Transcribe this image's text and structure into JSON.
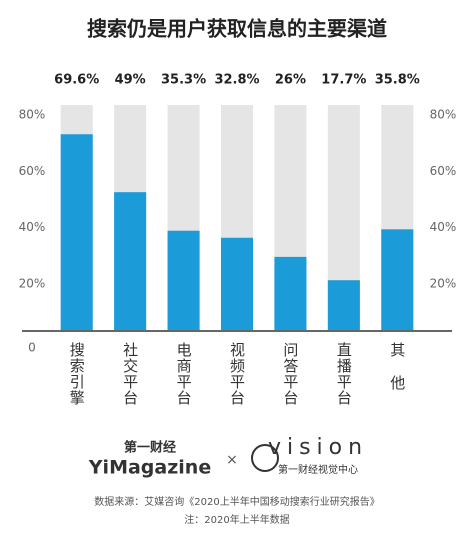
{
  "chart_data": {
    "type": "bar",
    "title": "搜索仍是用户获取信息的主要渠道",
    "categories": [
      "搜索引擎",
      "社交平台",
      "电商平台",
      "视频平台",
      "问答平台",
      "直播平台",
      "其他"
    ],
    "values": [
      69.6,
      49,
      35.3,
      32.8,
      26,
      17.7,
      35.8
    ],
    "value_labels": [
      "69.6%",
      "49%",
      "35.3%",
      "32.8%",
      "26%",
      "17.7%",
      "35.8%"
    ],
    "color": "#1b9bd7",
    "track_color": "#e5e5e5",
    "ylim": [
      0,
      80
    ],
    "yticks": [
      0,
      {
        "value": 20,
        "label": "20%"
      },
      {
        "value": 40,
        "label": "40%"
      },
      {
        "value": 60,
        "label": "60%"
      },
      {
        "value": 80,
        "label": "80%"
      }
    ],
    "grid": false
  },
  "footer": {
    "logo_cn": "第一财经",
    "logo_en": "YiMagazine",
    "times": "×",
    "vision": "vision",
    "vision_cn": "第一财经视觉中心",
    "source": "数据来源：艾媒咨询《2020上半年中国移动搜索行业研究报告》",
    "note": "注：2020年上半年数据"
  }
}
